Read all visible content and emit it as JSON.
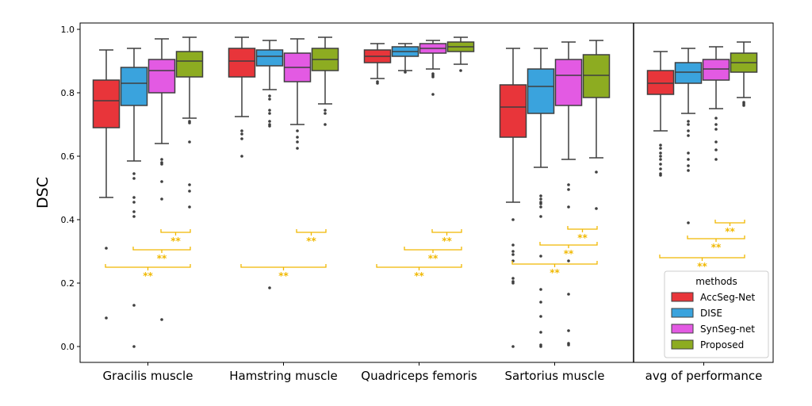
{
  "chart_data": {
    "type": "box",
    "ylabel": "DSC",
    "ylim": [
      -0.05,
      1.02
    ],
    "yticks": [
      "0.0",
      "0.2",
      "0.4",
      "0.6",
      "0.8",
      "1.0"
    ],
    "categories": [
      "Gracilis muscle",
      "Hamstring muscle",
      "Quadriceps femoris",
      "Sartorius muscle",
      "avg of performance"
    ],
    "legend": {
      "title": "methods",
      "position": "lower-right",
      "entries": [
        "AccSeg-Net",
        "DISE",
        "SynSeg-net",
        "Proposed"
      ]
    },
    "colors": {
      "AccSeg-Net": "#e8353a",
      "DISE": "#3aa3dd",
      "SynSeg-net": "#e35ae3",
      "Proposed": "#8dac21",
      "significance": "#f0b800"
    },
    "significance_mark": "**",
    "boxes": [
      [
        {
          "q1": 0.69,
          "median": 0.775,
          "q3": 0.84,
          "lo": 0.47,
          "hi": 0.935,
          "outliers": [
            0.31,
            0.09
          ]
        },
        {
          "q1": 0.76,
          "median": 0.83,
          "q3": 0.88,
          "lo": 0.585,
          "hi": 0.94,
          "outliers": [
            0.545,
            0.53,
            0.47,
            0.455,
            0.425,
            0.41,
            0.13,
            0.0
          ]
        },
        {
          "q1": 0.8,
          "median": 0.87,
          "q3": 0.905,
          "lo": 0.64,
          "hi": 0.97,
          "outliers": [
            0.59,
            0.58,
            0.575,
            0.52,
            0.465,
            0.085
          ]
        },
        {
          "q1": 0.85,
          "median": 0.9,
          "q3": 0.93,
          "lo": 0.72,
          "hi": 0.975,
          "outliers": [
            0.71,
            0.705,
            0.645,
            0.51,
            0.49,
            0.44
          ]
        }
      ],
      [
        {
          "q1": 0.85,
          "median": 0.9,
          "q3": 0.94,
          "lo": 0.725,
          "hi": 0.975,
          "outliers": [
            0.68,
            0.67,
            0.655,
            0.6
          ]
        },
        {
          "q1": 0.885,
          "median": 0.915,
          "q3": 0.935,
          "lo": 0.81,
          "hi": 0.965,
          "outliers": [
            0.79,
            0.78,
            0.745,
            0.735,
            0.71,
            0.7,
            0.695,
            0.185
          ]
        },
        {
          "q1": 0.835,
          "median": 0.88,
          "q3": 0.925,
          "lo": 0.7,
          "hi": 0.97,
          "outliers": [
            0.68,
            0.66,
            0.645,
            0.625
          ]
        },
        {
          "q1": 0.87,
          "median": 0.905,
          "q3": 0.94,
          "lo": 0.765,
          "hi": 0.975,
          "outliers": [
            0.745,
            0.735,
            0.7
          ]
        }
      ],
      [
        {
          "q1": 0.895,
          "median": 0.915,
          "q3": 0.935,
          "lo": 0.845,
          "hi": 0.955,
          "outliers": [
            0.835,
            0.83
          ]
        },
        {
          "q1": 0.915,
          "median": 0.93,
          "q3": 0.945,
          "lo": 0.87,
          "hi": 0.955,
          "outliers": [
            0.865
          ]
        },
        {
          "q1": 0.925,
          "median": 0.94,
          "q3": 0.955,
          "lo": 0.875,
          "hi": 0.965,
          "outliers": [
            0.86,
            0.855,
            0.85,
            0.795
          ]
        },
        {
          "q1": 0.93,
          "median": 0.945,
          "q3": 0.96,
          "lo": 0.89,
          "hi": 0.975,
          "outliers": [
            0.87
          ]
        }
      ],
      [
        {
          "q1": 0.66,
          "median": 0.755,
          "q3": 0.825,
          "lo": 0.455,
          "hi": 0.94,
          "outliers": [
            0.4,
            0.32,
            0.3,
            0.29,
            0.27,
            0.215,
            0.205,
            0.2,
            0.0
          ]
        },
        {
          "q1": 0.735,
          "median": 0.82,
          "q3": 0.875,
          "lo": 0.565,
          "hi": 0.94,
          "outliers": [
            0.475,
            0.465,
            0.455,
            0.45,
            0.44,
            0.41,
            0.285,
            0.18,
            0.14,
            0.095,
            0.045,
            0.005,
            0.0
          ]
        },
        {
          "q1": 0.76,
          "median": 0.855,
          "q3": 0.905,
          "lo": 0.59,
          "hi": 0.96,
          "outliers": [
            0.51,
            0.495,
            0.44,
            0.27,
            0.165,
            0.05,
            0.01,
            0.005
          ]
        },
        {
          "q1": 0.785,
          "median": 0.855,
          "q3": 0.92,
          "lo": 0.595,
          "hi": 0.965,
          "outliers": [
            0.55,
            0.435
          ]
        }
      ],
      [
        {
          "q1": 0.795,
          "median": 0.83,
          "q3": 0.87,
          "lo": 0.68,
          "hi": 0.93,
          "outliers": [
            0.635,
            0.625,
            0.61,
            0.6,
            0.59,
            0.575,
            0.56,
            0.545,
            0.54
          ]
        },
        {
          "q1": 0.83,
          "median": 0.865,
          "q3": 0.895,
          "lo": 0.735,
          "hi": 0.94,
          "outliers": [
            0.71,
            0.7,
            0.68,
            0.665,
            0.61,
            0.59,
            0.57,
            0.555,
            0.39
          ]
        },
        {
          "q1": 0.84,
          "median": 0.875,
          "q3": 0.905,
          "lo": 0.75,
          "hi": 0.945,
          "outliers": [
            0.72,
            0.7,
            0.685,
            0.645,
            0.62,
            0.59
          ]
        },
        {
          "q1": 0.865,
          "median": 0.895,
          "q3": 0.925,
          "lo": 0.785,
          "hi": 0.96,
          "outliers": [
            0.77,
            0.765,
            0.76
          ]
        }
      ]
    ],
    "significance": [
      [
        {
          "from": 2,
          "to": 3,
          "y": 0.36
        },
        {
          "from": 1,
          "to": 3,
          "y": 0.305
        },
        {
          "from": 0,
          "to": 3,
          "y": 0.25
        }
      ],
      [
        {
          "from": 2,
          "to": 3,
          "y": 0.36
        },
        {
          "from": 0,
          "to": 3,
          "y": 0.25
        }
      ],
      [
        {
          "from": 2,
          "to": 3,
          "y": 0.36
        },
        {
          "from": 1,
          "to": 3,
          "y": 0.305
        },
        {
          "from": 0,
          "to": 3,
          "y": 0.25
        }
      ],
      [
        {
          "from": 2,
          "to": 3,
          "y": 0.37
        },
        {
          "from": 1,
          "to": 3,
          "y": 0.32
        },
        {
          "from": 0,
          "to": 3,
          "y": 0.26
        }
      ],
      [
        {
          "from": 2,
          "to": 3,
          "y": 0.39
        },
        {
          "from": 1,
          "to": 3,
          "y": 0.34
        },
        {
          "from": 0,
          "to": 3,
          "y": 0.28
        }
      ]
    ]
  }
}
